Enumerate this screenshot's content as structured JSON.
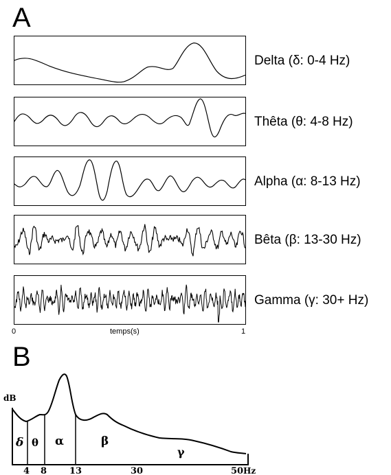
{
  "panel_a": {
    "letter": "A",
    "bands": [
      {
        "label": "Delta (δ: 0-4 Hz)"
      },
      {
        "label": "Thêta (θ: 4-8 Hz)"
      },
      {
        "label": "Alpha (α: 8-13 Hz)"
      },
      {
        "label": "Bêta (β: 13-30 Hz)"
      },
      {
        "label": "Gamma (γ: 30+ Hz)"
      }
    ],
    "time_axis": {
      "start": "0",
      "label": "temps(s)",
      "end": "1"
    }
  },
  "panel_b": {
    "letter": "B",
    "ylabel": "dB",
    "xunit": "Hz",
    "ticks": [
      {
        "value": 4,
        "label": "4"
      },
      {
        "value": 8,
        "label": "8"
      },
      {
        "value": 13,
        "label": "13"
      },
      {
        "value": 30,
        "label": "30"
      },
      {
        "value": 50,
        "label": "50"
      }
    ],
    "regions": [
      {
        "symbol": "δ"
      },
      {
        "symbol": "θ"
      },
      {
        "symbol": "α"
      },
      {
        "symbol": "β"
      },
      {
        "symbol": "γ"
      }
    ]
  }
}
